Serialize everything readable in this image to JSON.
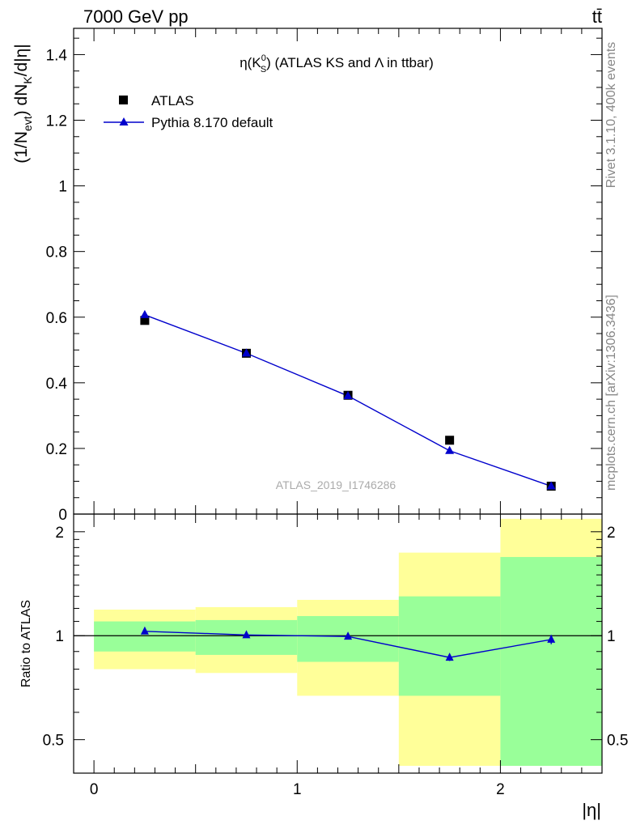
{
  "header": {
    "left": "7000 GeV pp",
    "right": "tt̄"
  },
  "side": {
    "rivet": "Rivet 3.1.10,  400k events",
    "mcplots": "mcplots.cern.ch [arXiv:1306.3436]"
  },
  "chart_data": [
    {
      "type": "scatter",
      "title": "η(K⁰S) (ATLAS KS and Λ in ttbar)",
      "title_parts": {
        "a": "η(K",
        "sup": "0",
        "sub": "S",
        "b": ") (ATLAS KS and Λ in ttbar)"
      },
      "ylabel": "(1/N_evt) dN_K/d|η|",
      "ylabel_parts": {
        "a": "(1/N",
        "sub1": "evt",
        "b": ") dN",
        "sub2": "K",
        "c": "/d|η|"
      },
      "xlabel": "",
      "xlim": [
        -0.1,
        2.5
      ],
      "ylim": [
        0,
        1.48
      ],
      "y_ticks": [
        "0",
        "0.2",
        "0.4",
        "0.6",
        "0.8",
        "1",
        "1.2",
        "1.4"
      ],
      "legend_position": "top-left",
      "watermark": "ATLAS_2019_I1746286",
      "series": [
        {
          "name": "ATLAS",
          "marker": "square",
          "color": "#000000",
          "x": [
            0.25,
            0.75,
            1.25,
            1.75,
            2.25
          ],
          "y": [
            0.59,
            0.49,
            0.362,
            0.225,
            0.085
          ]
        },
        {
          "name": "Pythia 8.170 default",
          "marker": "triangle",
          "color": "#0000cc",
          "x": [
            0.25,
            0.75,
            1.25,
            1.75,
            2.25
          ],
          "y": [
            0.607,
            0.49,
            0.36,
            0.193,
            0.085
          ]
        }
      ]
    },
    {
      "type": "line",
      "ylabel": "Ratio to ATLAS",
      "xlabel": "|η|",
      "xlim": [
        -0.1,
        2.5
      ],
      "ylim": [
        0.4,
        2.25
      ],
      "log_y": true,
      "x_ticks": [
        "0",
        "1",
        "2"
      ],
      "y_ticks": [
        "0.5",
        "1",
        "2"
      ],
      "bins": [
        [
          0,
          0.5
        ],
        [
          0.5,
          1.0
        ],
        [
          1.0,
          1.5
        ],
        [
          1.5,
          2.0
        ],
        [
          2.0,
          2.5
        ]
      ],
      "band_stat": [
        [
          0.9,
          1.1
        ],
        [
          0.88,
          1.11
        ],
        [
          0.84,
          1.14
        ],
        [
          0.67,
          1.3
        ],
        [
          0.42,
          1.69
        ]
      ],
      "band_total": [
        [
          0.8,
          1.19
        ],
        [
          0.78,
          1.21
        ],
        [
          0.67,
          1.27
        ],
        [
          0.42,
          1.74
        ],
        [
          0.42,
          2.18
        ]
      ],
      "colors": {
        "stat_band": "#99ff99",
        "total_band": "#ffff99"
      },
      "series": [
        {
          "name": "Pythia 8.170 default",
          "color": "#0000cc",
          "x": [
            0.25,
            0.75,
            1.25,
            1.75,
            2.25
          ],
          "y": [
            1.03,
            1.005,
            0.995,
            0.865,
            0.975
          ],
          "err": [
            0.01,
            0.01,
            0.01,
            0.02,
            0.03
          ]
        }
      ]
    }
  ]
}
